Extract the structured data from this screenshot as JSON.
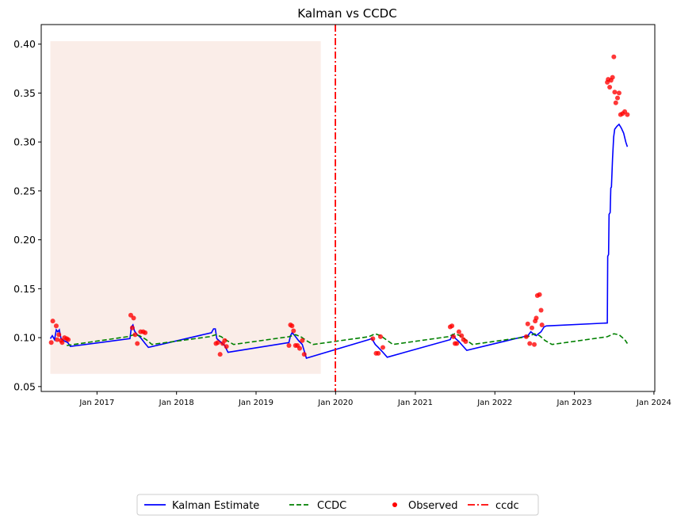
{
  "chart_data": {
    "type": "line",
    "title": "Kalman vs CCDC",
    "xlabel": "",
    "ylabel": "",
    "x_range": [
      "2016-04-20",
      "2024-01-05"
    ],
    "ylim": [
      0.045,
      0.42
    ],
    "y_ticks": [
      0.05,
      0.1,
      0.15,
      0.2,
      0.25,
      0.3,
      0.35,
      0.4
    ],
    "y_tick_labels": [
      "0.05",
      "0.10",
      "0.15",
      "0.20",
      "0.25",
      "0.30",
      "0.35",
      "0.40"
    ],
    "x_ticks": [
      "2017-01-01",
      "2018-01-01",
      "2019-01-01",
      "2020-01-01",
      "2021-01-01",
      "2022-01-01",
      "2023-01-01",
      "2024-01-01"
    ],
    "x_tick_labels": [
      "Jan 2017",
      "Jan 2018",
      "Jan 2019",
      "Jan 2020",
      "Jan 2021",
      "Jan 2022",
      "Jan 2023",
      "Jan 2024"
    ],
    "grid": false,
    "legend_position": "bottom-center",
    "shaded_region": {
      "x": [
        "2016-06-01",
        "2019-10-25"
      ],
      "y": [
        0.063,
        0.403
      ],
      "color": "#f4d6cc"
    },
    "series": [
      {
        "name": "Kalman Estimate",
        "type": "line",
        "style": "solid",
        "color": "#0000ff",
        "points": [
          [
            "2016-06-01",
            0.099
          ],
          [
            "2016-06-10",
            0.102
          ],
          [
            "2016-06-20",
            0.098
          ],
          [
            "2016-06-28",
            0.108
          ],
          [
            "2016-07-05",
            0.106
          ],
          [
            "2016-07-12",
            0.108
          ],
          [
            "2016-07-20",
            0.099
          ],
          [
            "2016-08-01",
            0.097
          ],
          [
            "2016-08-20",
            0.095
          ],
          [
            "2016-09-01",
            0.091
          ],
          [
            "2017-06-01",
            0.099
          ],
          [
            "2017-06-08",
            0.111
          ],
          [
            "2017-06-15",
            0.113
          ],
          [
            "2017-06-22",
            0.107
          ],
          [
            "2017-07-01",
            0.104
          ],
          [
            "2017-07-20",
            0.1
          ],
          [
            "2017-08-10",
            0.094
          ],
          [
            "2017-08-25",
            0.09
          ],
          [
            "2018-06-10",
            0.105
          ],
          [
            "2018-06-20",
            0.109
          ],
          [
            "2018-06-28",
            0.109
          ],
          [
            "2018-07-05",
            0.099
          ],
          [
            "2018-07-20",
            0.096
          ],
          [
            "2018-08-10",
            0.092
          ],
          [
            "2018-08-25",
            0.085
          ],
          [
            "2019-06-01",
            0.095
          ],
          [
            "2019-06-08",
            0.102
          ],
          [
            "2019-06-15",
            0.105
          ],
          [
            "2019-06-28",
            0.102
          ],
          [
            "2019-07-15",
            0.097
          ],
          [
            "2019-08-01",
            0.093
          ],
          [
            "2019-08-20",
            0.079
          ],
          [
            "2020-06-01",
            0.098
          ],
          [
            "2020-06-15",
            0.099
          ],
          [
            "2020-07-01",
            0.093
          ],
          [
            "2020-07-15",
            0.09
          ],
          [
            "2020-08-01",
            0.086
          ],
          [
            "2020-08-25",
            0.08
          ],
          [
            "2021-06-10",
            0.098
          ],
          [
            "2021-06-20",
            0.103
          ],
          [
            "2021-07-05",
            0.099
          ],
          [
            "2021-07-20",
            0.096
          ],
          [
            "2021-08-05",
            0.092
          ],
          [
            "2021-08-25",
            0.087
          ],
          [
            "2022-06-01",
            0.102
          ],
          [
            "2022-06-15",
            0.106
          ],
          [
            "2022-07-01",
            0.103
          ],
          [
            "2022-07-10",
            0.102
          ],
          [
            "2022-07-20",
            0.104
          ],
          [
            "2022-08-01",
            0.106
          ],
          [
            "2022-08-15",
            0.111
          ],
          [
            "2022-08-25",
            0.112
          ],
          [
            "2023-06-01",
            0.115
          ],
          [
            "2023-06-03",
            0.183
          ],
          [
            "2023-06-07",
            0.185
          ],
          [
            "2023-06-09",
            0.226
          ],
          [
            "2023-06-14",
            0.228
          ],
          [
            "2023-06-17",
            0.253
          ],
          [
            "2023-06-20",
            0.254
          ],
          [
            "2023-06-25",
            0.283
          ],
          [
            "2023-06-30",
            0.305
          ],
          [
            "2023-07-05",
            0.313
          ],
          [
            "2023-07-15",
            0.316
          ],
          [
            "2023-07-25",
            0.318
          ],
          [
            "2023-08-05",
            0.314
          ],
          [
            "2023-08-15",
            0.309
          ],
          [
            "2023-08-25",
            0.3
          ],
          [
            "2023-09-01",
            0.295
          ]
        ]
      },
      {
        "name": "CCDC",
        "type": "line",
        "style": "dashed",
        "color": "#008000",
        "points": [
          [
            "2016-08-15",
            0.092
          ],
          [
            "2017-05-20",
            0.101
          ],
          [
            "2017-06-20",
            0.103
          ],
          [
            "2017-07-15",
            0.102
          ],
          [
            "2017-08-15",
            0.098
          ],
          [
            "2017-09-10",
            0.093
          ],
          [
            "2018-06-01",
            0.101
          ],
          [
            "2018-07-01",
            0.103
          ],
          [
            "2018-07-25",
            0.101
          ],
          [
            "2018-08-20",
            0.097
          ],
          [
            "2018-09-20",
            0.093
          ],
          [
            "2019-06-01",
            0.101
          ],
          [
            "2019-07-01",
            0.103
          ],
          [
            "2019-07-25",
            0.101
          ],
          [
            "2019-08-20",
            0.097
          ],
          [
            "2019-09-20",
            0.093
          ],
          [
            "2020-06-01",
            0.101
          ],
          [
            "2020-07-01",
            0.104
          ],
          [
            "2020-07-25",
            0.102
          ],
          [
            "2020-08-20",
            0.098
          ],
          [
            "2020-09-20",
            0.093
          ],
          [
            "2021-06-01",
            0.101
          ],
          [
            "2021-07-01",
            0.104
          ],
          [
            "2021-07-25",
            0.102
          ],
          [
            "2021-08-20",
            0.098
          ],
          [
            "2021-09-20",
            0.093
          ],
          [
            "2022-06-01",
            0.101
          ],
          [
            "2022-07-01",
            0.104
          ],
          [
            "2022-07-25",
            0.102
          ],
          [
            "2022-08-20",
            0.097
          ],
          [
            "2022-09-20",
            0.093
          ],
          [
            "2023-06-01",
            0.101
          ],
          [
            "2023-07-01",
            0.104
          ],
          [
            "2023-07-25",
            0.103
          ],
          [
            "2023-08-20",
            0.098
          ],
          [
            "2023-09-01",
            0.094
          ]
        ]
      },
      {
        "name": "Observed",
        "type": "scatter",
        "color": "#ff0000",
        "points": [
          [
            "2016-06-05",
            0.095
          ],
          [
            "2016-06-12",
            0.117
          ],
          [
            "2016-06-28",
            0.112
          ],
          [
            "2016-07-02",
            0.098
          ],
          [
            "2016-07-10",
            0.103
          ],
          [
            "2016-07-20",
            0.097
          ],
          [
            "2016-07-25",
            0.095
          ],
          [
            "2016-08-05",
            0.1
          ],
          [
            "2016-08-15",
            0.099
          ],
          [
            "2016-08-22",
            0.098
          ],
          [
            "2017-06-05",
            0.123
          ],
          [
            "2017-06-12",
            0.11
          ],
          [
            "2017-06-18",
            0.12
          ],
          [
            "2017-06-25",
            0.103
          ],
          [
            "2017-07-05",
            0.094
          ],
          [
            "2017-07-20",
            0.106
          ],
          [
            "2017-08-01",
            0.106
          ],
          [
            "2017-08-10",
            0.105
          ],
          [
            "2018-07-01",
            0.094
          ],
          [
            "2018-07-10",
            0.095
          ],
          [
            "2018-07-20",
            0.083
          ],
          [
            "2018-08-01",
            0.094
          ],
          [
            "2018-08-10",
            0.097
          ],
          [
            "2018-08-18",
            0.091
          ],
          [
            "2019-06-01",
            0.092
          ],
          [
            "2019-06-08",
            0.113
          ],
          [
            "2019-06-15",
            0.112
          ],
          [
            "2019-06-22",
            0.107
          ],
          [
            "2019-07-01",
            0.092
          ],
          [
            "2019-07-10",
            0.092
          ],
          [
            "2019-07-20",
            0.089
          ],
          [
            "2019-08-01",
            0.097
          ],
          [
            "2019-08-10",
            0.083
          ],
          [
            "2020-06-20",
            0.099
          ],
          [
            "2020-07-05",
            0.084
          ],
          [
            "2020-07-15",
            0.084
          ],
          [
            "2020-07-25",
            0.101
          ],
          [
            "2020-08-05",
            0.09
          ],
          [
            "2021-06-10",
            0.111
          ],
          [
            "2021-06-18",
            0.112
          ],
          [
            "2021-06-25",
            0.101
          ],
          [
            "2021-07-02",
            0.094
          ],
          [
            "2021-07-10",
            0.094
          ],
          [
            "2021-07-20",
            0.106
          ],
          [
            "2021-08-01",
            0.102
          ],
          [
            "2021-08-10",
            0.098
          ],
          [
            "2021-08-20",
            0.096
          ],
          [
            "2022-05-25",
            0.101
          ],
          [
            "2022-06-01",
            0.114
          ],
          [
            "2022-06-10",
            0.094
          ],
          [
            "2022-06-20",
            0.11
          ],
          [
            "2022-07-01",
            0.093
          ],
          [
            "2022-07-05",
            0.117
          ],
          [
            "2022-07-10",
            0.12
          ],
          [
            "2022-07-15",
            0.143
          ],
          [
            "2022-07-25",
            0.144
          ],
          [
            "2022-08-01",
            0.128
          ],
          [
            "2022-08-05",
            0.113
          ],
          [
            "2023-06-01",
            0.361
          ],
          [
            "2023-06-05",
            0.364
          ],
          [
            "2023-06-12",
            0.356
          ],
          [
            "2023-06-18",
            0.363
          ],
          [
            "2023-06-25",
            0.366
          ],
          [
            "2023-07-01",
            0.387
          ],
          [
            "2023-07-05",
            0.351
          ],
          [
            "2023-07-10",
            0.34
          ],
          [
            "2023-07-18",
            0.345
          ],
          [
            "2023-07-25",
            0.35
          ],
          [
            "2023-08-01",
            0.328
          ],
          [
            "2023-08-10",
            0.329
          ],
          [
            "2023-08-20",
            0.331
          ],
          [
            "2023-09-01",
            0.328
          ]
        ]
      },
      {
        "name": "ccdc",
        "type": "vline",
        "style": "dashdot",
        "color": "#ff0000",
        "x": "2019-12-31"
      }
    ]
  }
}
